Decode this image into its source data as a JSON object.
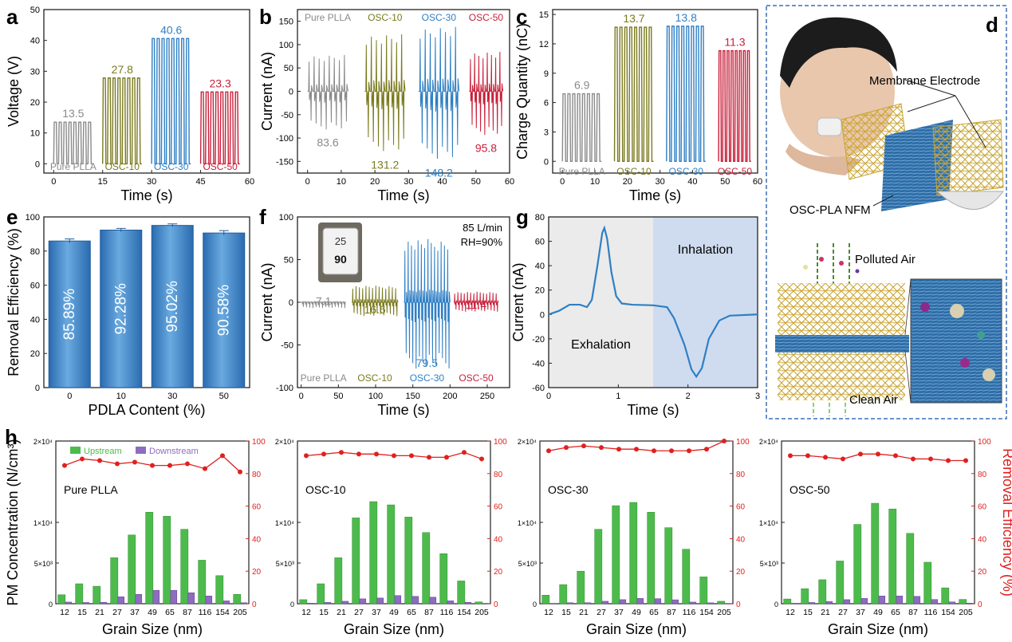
{
  "colors": {
    "gray": "#8a8a8a",
    "olive": "#7a7a1e",
    "blue": "#2f7fc4",
    "red": "#c8203a",
    "bar": "#3d86c6",
    "green": "#4cbb4c",
    "purple": "#8e6cc0",
    "eff": "#e0201e",
    "frame": "#3b6fb6"
  },
  "chart_data": [
    {
      "id": "a",
      "type": "line",
      "panel": "a",
      "xlabel": "Time (s)",
      "ylabel": "Voltage (V)",
      "xlim": [
        -3,
        60
      ],
      "ylim": [
        -3,
        50
      ],
      "xticks": [
        0,
        15,
        30,
        45,
        60
      ],
      "yticks": [
        0,
        10,
        20,
        30,
        40,
        50
      ],
      "series": [
        {
          "name": "Pure PLLA",
          "peak": 13.5,
          "x0": 0,
          "x1": 12
        },
        {
          "name": "OSC-10",
          "peak": 27.8,
          "x0": 15,
          "x1": 27
        },
        {
          "name": "OSC-30",
          "peak": 40.6,
          "x0": 30,
          "x1": 42
        },
        {
          "name": "OSC-50",
          "peak": 23.3,
          "x0": 45,
          "x1": 57
        }
      ]
    },
    {
      "id": "b",
      "type": "line",
      "panel": "b",
      "xlabel": "Time (s)",
      "ylabel": "Current (nA)",
      "xlim": [
        -3,
        60
      ],
      "ylim": [
        -175,
        175
      ],
      "xticks": [
        0,
        10,
        20,
        30,
        40,
        50,
        60
      ],
      "yticks": [
        -150,
        -100,
        -50,
        0,
        50,
        100,
        150
      ],
      "series": [
        {
          "name": "Pure PLLA",
          "value": 83.6,
          "x0": 0,
          "x1": 12
        },
        {
          "name": "OSC-10",
          "value": 131.2,
          "x0": 17,
          "x1": 29
        },
        {
          "name": "OSC-30",
          "value": 148.2,
          "x0": 33,
          "x1": 45
        },
        {
          "name": "OSC-50",
          "value": 95.8,
          "x0": 48,
          "x1": 58
        }
      ]
    },
    {
      "id": "c",
      "type": "line",
      "panel": "c",
      "xlabel": "Time (s)",
      "ylabel": "Charge Quantity (nC)",
      "xlim": [
        -3,
        60
      ],
      "ylim": [
        -1.2,
        15.5
      ],
      "xticks": [
        0,
        10,
        20,
        30,
        40,
        50,
        60
      ],
      "yticks": [
        0,
        3,
        6,
        9,
        12,
        15
      ],
      "series": [
        {
          "name": "Pure PLLA",
          "peak": 6.9,
          "x0": 0,
          "x1": 12
        },
        {
          "name": "OSC-10",
          "peak": 13.7,
          "x0": 16,
          "x1": 28
        },
        {
          "name": "OSC-30",
          "peak": 13.8,
          "x0": 32,
          "x1": 44
        },
        {
          "name": "OSC-50",
          "peak": 11.3,
          "x0": 48,
          "x1": 58
        }
      ]
    },
    {
      "id": "e",
      "type": "bar",
      "panel": "e",
      "xlabel": "PDLA Content (%)",
      "ylabel": "Removal Efficiency (%)",
      "categories": [
        "0",
        "10",
        "30",
        "50"
      ],
      "values": [
        85.89,
        92.28,
        95.02,
        90.58
      ],
      "errors": [
        1.2,
        1.0,
        0.9,
        1.4
      ],
      "labels": [
        "85.89%",
        "92.28%",
        "95.02%",
        "90.58%"
      ],
      "ylim": [
        0,
        100
      ],
      "yticks": [
        0,
        20,
        40,
        60,
        80,
        100
      ]
    },
    {
      "id": "f",
      "type": "line",
      "panel": "f",
      "xlabel": "Time (s)",
      "ylabel": "Current (nA)",
      "xlim": [
        -5,
        280
      ],
      "ylim": [
        -100,
        100
      ],
      "xticks": [
        0,
        50,
        100,
        150,
        200,
        250
      ],
      "yticks": [
        -100,
        -50,
        0,
        50,
        100
      ],
      "annotation": [
        "85 L/min",
        "RH=90%"
      ],
      "inset": {
        "temp": "25",
        "humidity": "90"
      },
      "series": [
        {
          "name": "Pure PLLA",
          "value": 7.1,
          "x0": 0,
          "x1": 60
        },
        {
          "name": "OSC-10",
          "value": 16.6,
          "x0": 68,
          "x1": 130
        },
        {
          "name": "OSC-30",
          "value": 79.5,
          "x0": 138,
          "x1": 200
        },
        {
          "name": "OSC-50",
          "value": 11.4,
          "x0": 205,
          "x1": 265
        }
      ]
    },
    {
      "id": "g",
      "type": "line",
      "panel": "g",
      "xlabel": "Time (s)",
      "ylabel": "Current (nA)",
      "xlim": [
        0,
        3
      ],
      "ylim": [
        -60,
        80
      ],
      "xticks": [
        0,
        1,
        2,
        3
      ],
      "yticks": [
        -60,
        -40,
        -20,
        0,
        20,
        40,
        60,
        80
      ],
      "regions": [
        "Exhalation",
        "Inhalation"
      ],
      "points": [
        [
          0,
          0
        ],
        [
          0.15,
          3
        ],
        [
          0.3,
          8
        ],
        [
          0.45,
          8
        ],
        [
          0.55,
          6
        ],
        [
          0.62,
          12
        ],
        [
          0.7,
          40
        ],
        [
          0.77,
          67
        ],
        [
          0.8,
          71
        ],
        [
          0.84,
          62
        ],
        [
          0.9,
          35
        ],
        [
          0.97,
          15
        ],
        [
          1.05,
          9
        ],
        [
          1.2,
          8
        ],
        [
          1.5,
          7.5
        ],
        [
          1.7,
          6
        ],
        [
          1.8,
          -3
        ],
        [
          1.95,
          -25
        ],
        [
          2.05,
          -45
        ],
        [
          2.12,
          -51
        ],
        [
          2.2,
          -44
        ],
        [
          2.3,
          -20
        ],
        [
          2.45,
          -5
        ],
        [
          2.6,
          -1
        ],
        [
          3,
          0
        ]
      ]
    }
  ],
  "h": {
    "title_letter": "h",
    "xlabel": "Grain Size (nm)",
    "ylabel_left": "PM Concentration (N/cm³)",
    "ylabel_right": "Removal Efficiency (%)",
    "legend": [
      "Upstream",
      "Downstream"
    ],
    "categories": [
      "12",
      "15",
      "21",
      "27",
      "37",
      "49",
      "65",
      "87",
      "116",
      "154",
      "205"
    ],
    "yticks_left": [
      "0",
      "5×10³",
      "1×10⁴",
      "2×10⁴"
    ],
    "yticks_right": [
      "0",
      "20",
      "40",
      "60",
      "80",
      "100"
    ],
    "panels": [
      {
        "name": "Pure PLLA",
        "up": [
          1100,
          2450,
          2150,
          5650,
          8450,
          11250,
          10750,
          9150,
          5350,
          3450,
          1150
        ],
        "down": [
          200,
          150,
          180,
          850,
          1150,
          1650,
          1650,
          1350,
          950,
          350,
          120
        ],
        "eff": [
          85,
          89,
          88,
          86,
          87,
          85,
          85,
          86,
          83,
          91,
          81
        ]
      },
      {
        "name": "OSC-10",
        "up": [
          500,
          2450,
          5650,
          10550,
          12550,
          12150,
          10650,
          8750,
          6150,
          2800,
          220
        ],
        "down": [
          60,
          160,
          300,
          600,
          700,
          1000,
          900,
          800,
          350,
          180,
          40
        ],
        "eff": [
          91,
          92,
          93,
          92,
          92,
          91,
          91,
          90,
          90,
          93,
          89
        ]
      },
      {
        "name": "OSC-30",
        "up": [
          1050,
          2350,
          4000,
          9150,
          12050,
          12450,
          11250,
          9350,
          6700,
          3300,
          300
        ],
        "down": [
          40,
          120,
          120,
          300,
          500,
          650,
          620,
          480,
          200,
          110,
          30
        ],
        "eff": [
          94,
          96,
          97,
          96,
          95,
          95,
          94,
          94,
          94,
          95,
          100
        ]
      },
      {
        "name": "OSC-50",
        "up": [
          580,
          1850,
          2950,
          5250,
          9750,
          12350,
          11650,
          8650,
          5100,
          1950,
          530
        ],
        "down": [
          50,
          150,
          260,
          500,
          650,
          950,
          950,
          900,
          520,
          220,
          70
        ],
        "eff": [
          91,
          91,
          90,
          89,
          92,
          92,
          91,
          89,
          89,
          88,
          88
        ]
      }
    ]
  },
  "d": {
    "letter": "d",
    "labels": {
      "membrane_electrode": "Membrane Electrode",
      "nfm": "OSC-PLA NFM",
      "polluted": "Polluted Air",
      "clean": "Clean Air"
    }
  },
  "letters": {
    "a": "a",
    "b": "b",
    "c": "c",
    "e": "e",
    "f": "f",
    "g": "g"
  }
}
